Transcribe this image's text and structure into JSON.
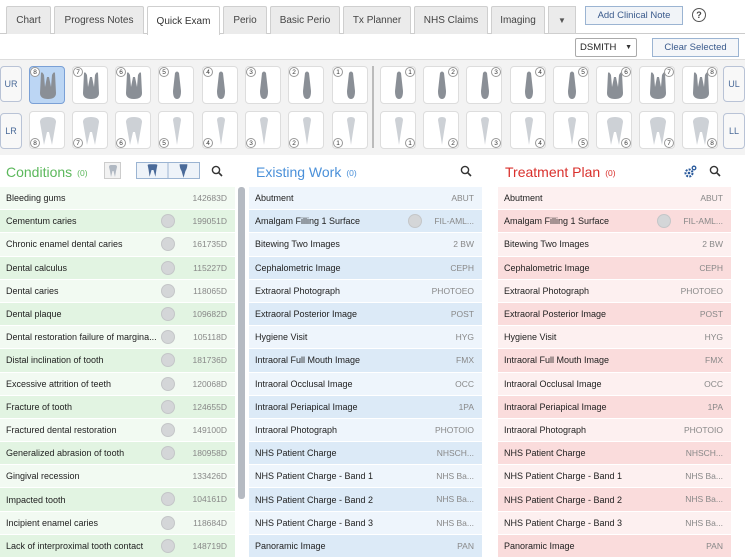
{
  "tabs": [
    "Chart",
    "Progress Notes",
    "Quick Exam",
    "Perio",
    "Basic Perio",
    "Tx Planner",
    "NHS Claims",
    "Imaging"
  ],
  "active_tab": "Quick Exam",
  "add_note": "Add Clinical Note",
  "help": "?",
  "user": "DSMITH",
  "clear_selected": "Clear Selected",
  "quadrants": {
    "ur": "UR",
    "ul": "UL",
    "lr": "LR",
    "ll": "LL"
  },
  "upper_right_numbers": [
    "8",
    "7",
    "6",
    "5",
    "4",
    "3",
    "2",
    "1"
  ],
  "upper_left_numbers": [
    "1",
    "2",
    "3",
    "4",
    "5",
    "6",
    "7",
    "8"
  ],
  "lower_right_numbers": [
    "8",
    "7",
    "6",
    "5",
    "4",
    "3",
    "2",
    "1"
  ],
  "lower_left_numbers": [
    "1",
    "2",
    "3",
    "4",
    "5",
    "6",
    "7",
    "8"
  ],
  "selected_tooth": "UR8",
  "colors": {
    "conditions": "#5cb85c",
    "existing": "#4a90d9",
    "treatment": "#d9302c"
  },
  "conditions": {
    "title": "Conditions",
    "count": "(0)",
    "items": [
      {
        "name": "Bleeding gums",
        "code": "142683D"
      },
      {
        "name": "Cementum caries",
        "code": "199051D"
      },
      {
        "name": "Chronic enamel dental caries",
        "code": "161735D"
      },
      {
        "name": "Dental calculus",
        "code": "115227D"
      },
      {
        "name": "Dental caries",
        "code": "118065D"
      },
      {
        "name": "Dental plaque",
        "code": "109682D"
      },
      {
        "name": "Dental restoration failure of margina...",
        "code": "105118D"
      },
      {
        "name": "Distal inclination of tooth",
        "code": "181736D"
      },
      {
        "name": "Excessive attrition of teeth",
        "code": "120068D"
      },
      {
        "name": "Fracture of tooth",
        "code": "124655D"
      },
      {
        "name": "Fractured dental restoration",
        "code": "149100D"
      },
      {
        "name": "Generalized abrasion of tooth",
        "code": "180958D"
      },
      {
        "name": "Gingival recession",
        "code": "133426D"
      },
      {
        "name": "Impacted tooth",
        "code": "104161D"
      },
      {
        "name": "Incipient enamel caries",
        "code": "118684D"
      },
      {
        "name": "Lack of interproximal tooth contact",
        "code": "148719D"
      }
    ]
  },
  "existing": {
    "title": "Existing Work",
    "count": "(0)",
    "items": [
      {
        "name": "Abutment",
        "code": "ABUT"
      },
      {
        "name": "Amalgam Filling 1 Surface",
        "code": "FIL-AML..."
      },
      {
        "name": "Bitewing Two Images",
        "code": "2 BW"
      },
      {
        "name": "Cephalometric Image",
        "code": "CEPH"
      },
      {
        "name": "Extraoral Photograph",
        "code": "PHOTOEO"
      },
      {
        "name": "Extraoral Posterior Image",
        "code": "POST"
      },
      {
        "name": "Hygiene Visit",
        "code": "HYG"
      },
      {
        "name": "Intraoral Full Mouth Image",
        "code": "FMX"
      },
      {
        "name": "Intraoral Occlusal Image",
        "code": "OCC"
      },
      {
        "name": "Intraoral Periapical Image",
        "code": "1PA"
      },
      {
        "name": "Intraoral Photograph",
        "code": "PHOTOIO"
      },
      {
        "name": "NHS Patient Charge",
        "code": "NHSCH..."
      },
      {
        "name": "NHS Patient Charge - Band 1",
        "code": "NHS Ba..."
      },
      {
        "name": "NHS Patient Charge - Band 2",
        "code": "NHS Ba..."
      },
      {
        "name": "NHS Patient Charge - Band 3",
        "code": "NHS Ba..."
      },
      {
        "name": "Panoramic Image",
        "code": "PAN"
      }
    ]
  },
  "treatment": {
    "title": "Treatment Plan",
    "count": "(0)",
    "items": [
      {
        "name": "Abutment",
        "code": "ABUT"
      },
      {
        "name": "Amalgam Filling 1 Surface",
        "code": "FIL-AML..."
      },
      {
        "name": "Bitewing Two Images",
        "code": "2 BW"
      },
      {
        "name": "Cephalometric Image",
        "code": "CEPH"
      },
      {
        "name": "Extraoral Photograph",
        "code": "PHOTOEO"
      },
      {
        "name": "Extraoral Posterior Image",
        "code": "POST"
      },
      {
        "name": "Hygiene Visit",
        "code": "HYG"
      },
      {
        "name": "Intraoral Full Mouth Image",
        "code": "FMX"
      },
      {
        "name": "Intraoral Occlusal Image",
        "code": "OCC"
      },
      {
        "name": "Intraoral Periapical Image",
        "code": "1PA"
      },
      {
        "name": "Intraoral Photograph",
        "code": "PHOTOIO"
      },
      {
        "name": "NHS Patient Charge",
        "code": "NHSCH..."
      },
      {
        "name": "NHS Patient Charge - Band 1",
        "code": "NHS Ba..."
      },
      {
        "name": "NHS Patient Charge - Band 2",
        "code": "NHS Ba..."
      },
      {
        "name": "NHS Patient Charge - Band 3",
        "code": "NHS Ba..."
      },
      {
        "name": "Panoramic Image",
        "code": "PAN"
      }
    ]
  }
}
